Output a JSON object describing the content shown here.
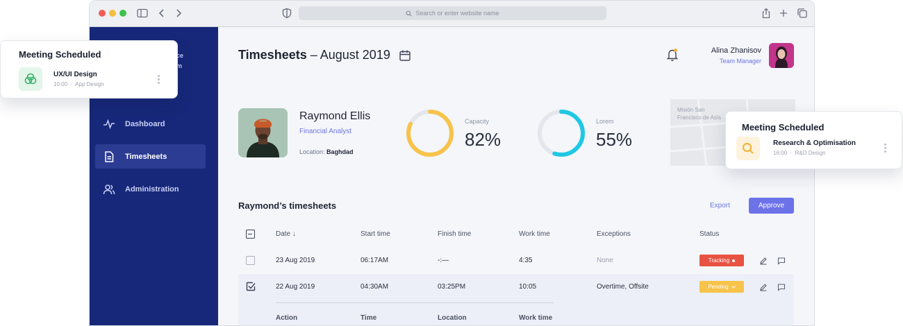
{
  "browser": {
    "url_placeholder": "Search or enter website name"
  },
  "sidebar": {
    "brand_line1": "ce",
    "brand_line2": "m",
    "items": [
      {
        "label": "Dashboard",
        "icon": "activity-icon"
      },
      {
        "label": "Timesheets",
        "icon": "document-icon",
        "active": true
      },
      {
        "label": "Administration",
        "icon": "users-icon"
      }
    ]
  },
  "header": {
    "title_bold": "Timesheets",
    "title_rest": "– August 2019",
    "user_name": "Alina Zhanisov",
    "user_role": "Team Manager"
  },
  "profile": {
    "name": "Raymond Ellis",
    "role": "Financial Analyst",
    "location_label": "Location:",
    "location_value": "Baghdad"
  },
  "stats": [
    {
      "label": "Capacity",
      "value": "82%",
      "fraction": 0.82,
      "color": "#f7c34a"
    },
    {
      "label": "Lorem",
      "value": "55%",
      "fraction": 0.55,
      "color": "#1fc8e3"
    }
  ],
  "map": {
    "line1": "Misión San",
    "line2": "Francisco de Asís"
  },
  "timesheets": {
    "title": "Raymond’s timesheets",
    "export_label": "Export",
    "approve_label": "Approve",
    "columns": [
      "Date ↓",
      "Start time",
      "Finish time",
      "Work time",
      "Exceptions",
      "Status"
    ],
    "rows": [
      {
        "date": "23 Aug 2019",
        "start": "06:17AM",
        "finish": "-:—",
        "work": "4:35",
        "exceptions": "None",
        "status": "Tracking",
        "status_color": "#e85242",
        "checked": false
      },
      {
        "date": "22 Aug 2019",
        "start": "04:30AM",
        "finish": "03:25PM",
        "work": "10:05",
        "exceptions": "Overtime, Offsite",
        "status": "Pending",
        "status_color": "#f7c34a",
        "checked": true
      }
    ],
    "sub_columns": [
      "Action",
      "Time",
      "Location",
      "Work time"
    ]
  },
  "card_left": {
    "title": "Meeting Scheduled",
    "item_title": "UX/UI Design",
    "item_time": "10:00",
    "item_category": "App Design",
    "icon": "venn-circles-icon",
    "icon_color": "#36b26a"
  },
  "card_right": {
    "title": "Meeting Scheduled",
    "item_title": "Research & Optimisation",
    "item_time": "16:00",
    "item_category": "R&D Design",
    "icon": "search-icon",
    "icon_color": "#f2b33d"
  }
}
